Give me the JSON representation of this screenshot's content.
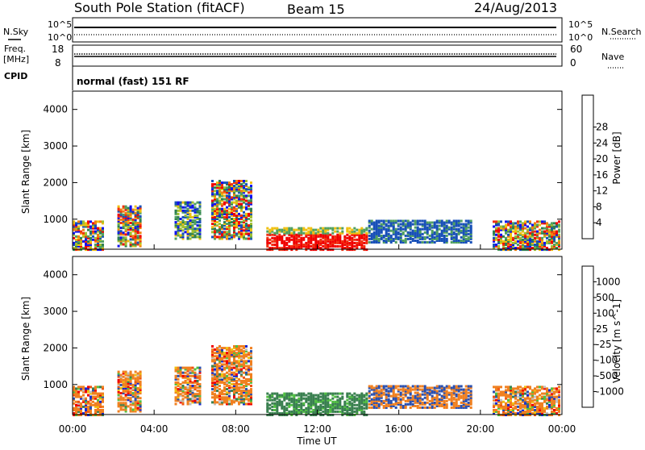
{
  "header": {
    "station": "South Pole Station (fitACF)",
    "beam": "Beam 15",
    "date": "24/Aug/2013"
  },
  "noise_panel": {
    "left_label": "N.Sky",
    "right_label": "N.Search",
    "left_ticks": [
      "10^5",
      "10^0"
    ],
    "right_ticks": [
      "10^5",
      "10^0"
    ]
  },
  "freq_panel": {
    "left_label_1": "Freq.",
    "left_label_2": "[MHz]",
    "right_label": "Nave",
    "left_ticks": [
      "18",
      "8"
    ],
    "right_ticks": [
      "60",
      "0"
    ]
  },
  "cpid": {
    "label": "CPID",
    "value": "normal (fast) 151 RF"
  },
  "colors": {
    "power": [
      "#1010f0",
      "#1850b8",
      "#2f8050",
      "#50a060",
      "#a0c030",
      "#f0c010",
      "#f08010",
      "#f03010",
      "#f00000"
    ],
    "velocity": [
      "#1828d0",
      "#2a50b0",
      "#3a8050",
      "#50c040",
      "#c0c0c0",
      "#f0c010",
      "#f08020",
      "#f05010",
      "#f00000"
    ]
  },
  "chart_data": [
    {
      "type": "heatmap",
      "ylabel": "Slant Range [km]",
      "xlabel": "",
      "colorbar_label": "Power [dB]",
      "colorbar_ticks": [
        "4",
        "8",
        "12",
        "16",
        "20",
        "24",
        "28"
      ],
      "x_range_hours": [
        0,
        24
      ],
      "ylim": [
        180,
        4500
      ],
      "y_ticks": [
        "1000",
        "2000",
        "3000",
        "4000"
      ],
      "x_tick_labels": [
        "00:00",
        "04:00",
        "08:00",
        "12:00",
        "16:00",
        "20:00",
        "00:00"
      ],
      "regions": [
        {
          "t": [
            0.0,
            1.5
          ],
          "r": [
            200,
            1000
          ],
          "level": "mixed-high"
        },
        {
          "t": [
            2.2,
            3.3
          ],
          "r": [
            300,
            1400
          ],
          "level": "mixed-high"
        },
        {
          "t": [
            5.0,
            6.2
          ],
          "r": [
            500,
            1500
          ],
          "level": "mixed"
        },
        {
          "t": [
            6.8,
            8.7
          ],
          "r": [
            500,
            2100
          ],
          "level": "mixed-high"
        },
        {
          "t": [
            9.5,
            14.4
          ],
          "r": [
            200,
            800
          ],
          "level": "high"
        },
        {
          "t": [
            14.5,
            19.5
          ],
          "r": [
            400,
            1000
          ],
          "level": "low"
        },
        {
          "t": [
            20.6,
            23.9
          ],
          "r": [
            200,
            1000
          ],
          "level": "mixed-high"
        }
      ]
    },
    {
      "type": "heatmap",
      "ylabel": "Slant Range [km]",
      "xlabel": "Time UT",
      "colorbar_label": "Velocity [m s^-1]",
      "colorbar_ticks": [
        "-1000",
        "-500",
        "-100",
        "-25",
        "25",
        "100",
        "500",
        "1000"
      ],
      "x_range_hours": [
        0,
        24
      ],
      "ylim": [
        180,
        4500
      ],
      "y_ticks": [
        "1000",
        "2000",
        "3000",
        "4000"
      ],
      "x_tick_labels": [
        "00:00",
        "04:00",
        "08:00",
        "12:00",
        "16:00",
        "20:00",
        "00:00"
      ]
    }
  ]
}
